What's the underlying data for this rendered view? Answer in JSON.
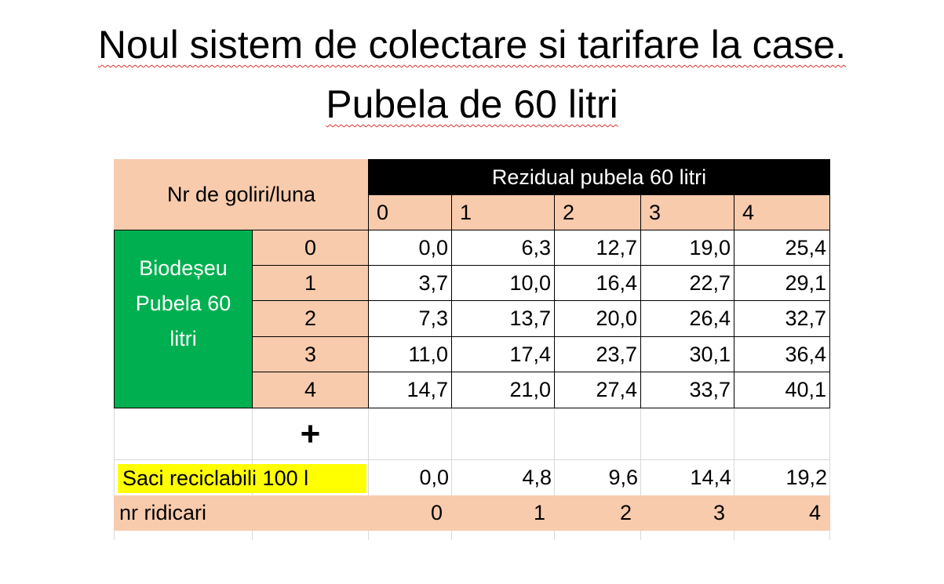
{
  "title": [
    "Noul sistem de colectare si tarifare la case.",
    "Pubela de 60 litri"
  ],
  "table": {
    "corner": "Nr de goliri/luna",
    "group_header": "Rezidual pubela 60 litri",
    "columns": [
      "0",
      "1",
      "2",
      "3",
      "4"
    ],
    "row_group": [
      "Biodeșeu",
      "Pubela  60",
      "litri"
    ],
    "rows": [
      {
        "label": "0",
        "values": [
          "0,0",
          "6,3",
          "12,7",
          "19,0",
          "25,4"
        ]
      },
      {
        "label": "1",
        "values": [
          "3,7",
          "10,0",
          "16,4",
          "22,7",
          "29,1"
        ]
      },
      {
        "label": "2",
        "values": [
          "7,3",
          "13,7",
          "20,0",
          "26,4",
          "32,7"
        ]
      },
      {
        "label": "3",
        "values": [
          "11,0",
          "17,4",
          "23,7",
          "30,1",
          "36,4"
        ]
      },
      {
        "label": "4",
        "values": [
          "14,7",
          "21,0",
          "27,4",
          "33,7",
          "40,1"
        ]
      }
    ],
    "plus": "+",
    "recycle": {
      "label": "Saci reciclabili 100 l",
      "values": [
        "0,0",
        "4,8",
        "9,6",
        "14,4",
        "19,2"
      ]
    },
    "pickups": {
      "label": "nr ridicari",
      "values": [
        "0",
        "1",
        "2",
        "3",
        "4"
      ]
    }
  }
}
